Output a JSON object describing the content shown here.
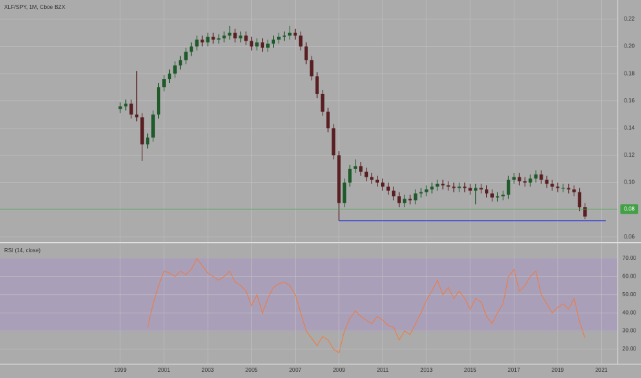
{
  "chart_data": [
    {
      "type": "candlestick",
      "title": "XLF/SPY, 1M, Cboe BZX",
      "x": [
        1999,
        1999.25,
        1999.5,
        1999.75,
        2000,
        2000.25,
        2000.5,
        2000.75,
        2001,
        2001.25,
        2001.5,
        2001.75,
        2002,
        2002.25,
        2002.5,
        2002.75,
        2003,
        2003.25,
        2003.5,
        2003.75,
        2004,
        2004.25,
        2004.5,
        2004.75,
        2005,
        2005.25,
        2005.5,
        2005.75,
        2006,
        2006.25,
        2006.5,
        2006.75,
        2007,
        2007.25,
        2007.5,
        2007.75,
        2008,
        2008.25,
        2008.5,
        2008.75,
        2009,
        2009.25,
        2009.5,
        2009.75,
        2010,
        2010.25,
        2010.5,
        2010.75,
        2011,
        2011.25,
        2011.5,
        2011.75,
        2012,
        2012.25,
        2012.5,
        2012.75,
        2013,
        2013.25,
        2013.5,
        2013.75,
        2014,
        2014.25,
        2014.5,
        2014.75,
        2015,
        2015.25,
        2015.5,
        2015.75,
        2016,
        2016.25,
        2016.5,
        2016.75,
        2017,
        2017.25,
        2017.5,
        2017.75,
        2018,
        2018.25,
        2018.5,
        2018.75,
        2019,
        2019.25,
        2019.5,
        2019.75,
        2020,
        2020.25
      ],
      "open": [
        0.154,
        0.156,
        0.158,
        0.15,
        0.148,
        0.128,
        0.133,
        0.15,
        0.17,
        0.176,
        0.18,
        0.186,
        0.19,
        0.196,
        0.2,
        0.205,
        0.203,
        0.207,
        0.205,
        0.206,
        0.208,
        0.21,
        0.206,
        0.208,
        0.204,
        0.2,
        0.203,
        0.199,
        0.202,
        0.205,
        0.207,
        0.208,
        0.21,
        0.208,
        0.2,
        0.19,
        0.178,
        0.165,
        0.152,
        0.14,
        0.12,
        0.085,
        0.1,
        0.11,
        0.112,
        0.108,
        0.104,
        0.102,
        0.1,
        0.097,
        0.094,
        0.09,
        0.085,
        0.088,
        0.087,
        0.092,
        0.093,
        0.095,
        0.097,
        0.099,
        0.098,
        0.097,
        0.096,
        0.097,
        0.096,
        0.094,
        0.096,
        0.095,
        0.092,
        0.089,
        0.09,
        0.091,
        0.102,
        0.104,
        0.101,
        0.1,
        0.103,
        0.106,
        0.102,
        0.099,
        0.097,
        0.096,
        0.096,
        0.095,
        0.093,
        0.082
      ],
      "high": [
        0.159,
        0.161,
        0.161,
        0.182,
        0.151,
        0.136,
        0.153,
        0.173,
        0.179,
        0.183,
        0.189,
        0.193,
        0.199,
        0.203,
        0.208,
        0.208,
        0.21,
        0.21,
        0.209,
        0.211,
        0.215,
        0.213,
        0.211,
        0.211,
        0.207,
        0.206,
        0.206,
        0.205,
        0.208,
        0.21,
        0.211,
        0.215,
        0.213,
        0.211,
        0.203,
        0.193,
        0.181,
        0.168,
        0.155,
        0.143,
        0.123,
        0.103,
        0.113,
        0.117,
        0.115,
        0.111,
        0.107,
        0.105,
        0.103,
        0.1,
        0.097,
        0.093,
        0.091,
        0.091,
        0.095,
        0.096,
        0.098,
        0.1,
        0.102,
        0.102,
        0.101,
        0.1,
        0.1,
        0.1,
        0.099,
        0.099,
        0.099,
        0.098,
        0.095,
        0.093,
        0.094,
        0.105,
        0.107,
        0.107,
        0.104,
        0.106,
        0.109,
        0.109,
        0.105,
        0.102,
        0.1,
        0.099,
        0.099,
        0.098,
        0.096,
        0.085
      ],
      "low": [
        0.151,
        0.153,
        0.147,
        0.145,
        0.116,
        0.125,
        0.13,
        0.147,
        0.167,
        0.173,
        0.177,
        0.183,
        0.187,
        0.193,
        0.197,
        0.2,
        0.2,
        0.202,
        0.202,
        0.203,
        0.205,
        0.203,
        0.203,
        0.201,
        0.197,
        0.197,
        0.196,
        0.196,
        0.199,
        0.202,
        0.204,
        0.205,
        0.205,
        0.197,
        0.187,
        0.175,
        0.162,
        0.149,
        0.137,
        0.117,
        0.072,
        0.082,
        0.097,
        0.107,
        0.105,
        0.101,
        0.099,
        0.097,
        0.094,
        0.091,
        0.087,
        0.082,
        0.082,
        0.084,
        0.084,
        0.089,
        0.09,
        0.092,
        0.094,
        0.095,
        0.094,
        0.093,
        0.093,
        0.093,
        0.091,
        0.084,
        0.092,
        0.089,
        0.086,
        0.086,
        0.087,
        0.088,
        0.099,
        0.098,
        0.097,
        0.097,
        0.1,
        0.099,
        0.096,
        0.094,
        0.093,
        0.093,
        0.092,
        0.09,
        0.079,
        0.073
      ],
      "close": [
        0.156,
        0.158,
        0.15,
        0.148,
        0.128,
        0.133,
        0.15,
        0.17,
        0.176,
        0.18,
        0.186,
        0.19,
        0.196,
        0.2,
        0.205,
        0.203,
        0.207,
        0.205,
        0.206,
        0.208,
        0.21,
        0.206,
        0.208,
        0.204,
        0.2,
        0.203,
        0.199,
        0.202,
        0.205,
        0.207,
        0.208,
        0.21,
        0.208,
        0.2,
        0.19,
        0.178,
        0.165,
        0.152,
        0.14,
        0.12,
        0.085,
        0.1,
        0.11,
        0.112,
        0.108,
        0.104,
        0.102,
        0.1,
        0.097,
        0.094,
        0.09,
        0.085,
        0.088,
        0.087,
        0.092,
        0.093,
        0.095,
        0.097,
        0.099,
        0.098,
        0.097,
        0.096,
        0.097,
        0.096,
        0.094,
        0.096,
        0.095,
        0.092,
        0.089,
        0.09,
        0.091,
        0.102,
        0.104,
        0.101,
        0.1,
        0.103,
        0.106,
        0.102,
        0.099,
        0.097,
        0.096,
        0.096,
        0.095,
        0.093,
        0.082,
        0.075
      ],
      "up_color": "#1e5a2a",
      "down_color": "#5a1f22",
      "xlim": [
        1993.5,
        2021.74
      ],
      "xticks": [
        1999,
        2001,
        2003,
        2005,
        2007,
        2009,
        2011,
        2013,
        2015,
        2017,
        2019,
        2021
      ],
      "ylim": [
        0.0564,
        0.2341
      ],
      "yticks": [
        {
          "value": 0.06,
          "label": "0.06"
        },
        {
          "value": 0.08,
          "label": "0.08"
        },
        {
          "value": 0.1,
          "label": "0.10"
        },
        {
          "value": 0.12,
          "label": "0.12"
        },
        {
          "value": 0.14,
          "label": "0.14"
        },
        {
          "value": 0.16,
          "label": "0.16"
        },
        {
          "value": 0.18,
          "label": "0.18"
        },
        {
          "value": 0.2,
          "label": "0.20"
        },
        {
          "value": 0.22,
          "label": "0.22"
        }
      ],
      "grid": true,
      "last_price": {
        "value": 0.0805,
        "label": "0.08"
      },
      "last_price_color": "#43a047",
      "support_line": {
        "x": [
          2009,
          2021.2
        ],
        "value": 0.072,
        "color": "#2c3bd8"
      }
    },
    {
      "type": "line",
      "title": "RSI (14, close)",
      "x": [
        2000.25,
        2000.5,
        2000.75,
        2001,
        2001.25,
        2001.5,
        2001.75,
        2002,
        2002.25,
        2002.5,
        2002.75,
        2003,
        2003.25,
        2003.5,
        2003.75,
        2004,
        2004.25,
        2004.5,
        2004.75,
        2005,
        2005.25,
        2005.5,
        2005.75,
        2006,
        2006.25,
        2006.5,
        2006.75,
        2007,
        2007.25,
        2007.5,
        2007.75,
        2008,
        2008.25,
        2008.5,
        2008.75,
        2009,
        2009.25,
        2009.5,
        2009.75,
        2010,
        2010.25,
        2010.5,
        2010.75,
        2011,
        2011.25,
        2011.5,
        2011.75,
        2012,
        2012.25,
        2012.5,
        2012.75,
        2013,
        2013.25,
        2013.5,
        2013.75,
        2014,
        2014.25,
        2014.5,
        2014.75,
        2015,
        2015.25,
        2015.5,
        2015.75,
        2016,
        2016.25,
        2016.5,
        2016.75,
        2017,
        2017.25,
        2017.5,
        2017.75,
        2018,
        2018.25,
        2018.5,
        2018.75,
        2019,
        2019.25,
        2019.5,
        2019.75,
        2020,
        2020.25
      ],
      "values": [
        32,
        45,
        55,
        63,
        62,
        60,
        63,
        61,
        64,
        70,
        66,
        62,
        60,
        58,
        60,
        63,
        57,
        55,
        52,
        44,
        50,
        40,
        48,
        54,
        56,
        57,
        55,
        50,
        40,
        30,
        26,
        22,
        27,
        25,
        20,
        18,
        30,
        37,
        41,
        38,
        36,
        34,
        38,
        36,
        33,
        32,
        25,
        30,
        28,
        34,
        40,
        47,
        52,
        58,
        50,
        54,
        48,
        52,
        48,
        42,
        48,
        46,
        38,
        34,
        40,
        45,
        60,
        64,
        52,
        55,
        60,
        63,
        50,
        45,
        40,
        43,
        45,
        42,
        48,
        35,
        26
      ],
      "color": "#f07a3c",
      "xlim": [
        1993.5,
        2021.74
      ],
      "ylim": [
        11.67,
        77.95
      ],
      "yticks": [
        {
          "value": 20,
          "label": "20.00"
        },
        {
          "value": 30,
          "label": "30.00"
        },
        {
          "value": 40,
          "label": "40.00"
        },
        {
          "value": 50,
          "label": "50.00"
        },
        {
          "value": 60,
          "label": "60.00"
        },
        {
          "value": 70,
          "label": "70.00"
        }
      ],
      "band": [
        30,
        70
      ],
      "band_color": "#a996c4",
      "grid": true
    }
  ]
}
